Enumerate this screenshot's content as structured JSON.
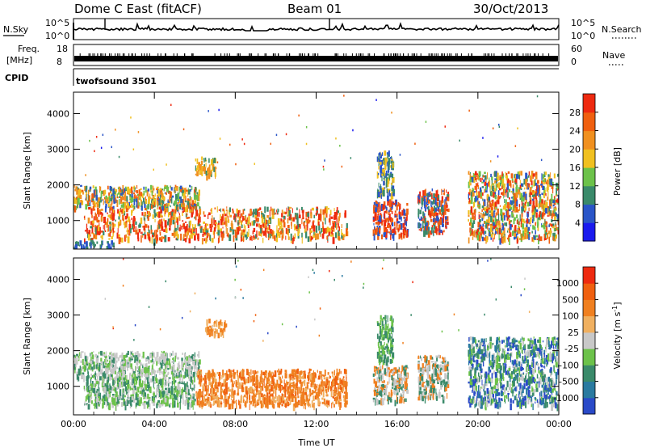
{
  "header": {
    "radar": "Dome C East (fitACF)",
    "beam": "Beam 01",
    "date": "30/Oct/2013"
  },
  "top_panels": {
    "nsky_label": "N.Sky",
    "nsky_ticks": [
      "10^5",
      "10^0"
    ],
    "nsearch_label": "N.Search",
    "nsearch_ticks": [
      "10^5",
      "10^0"
    ],
    "freq_label_1": "Freq.",
    "freq_label_2": "[MHz]",
    "freq_ticks": [
      "18",
      "8"
    ],
    "nave_label": "Nave",
    "nave_ticks": [
      "60",
      "0"
    ],
    "cpid_label": "CPID",
    "cpid_value": "twofsound 3501"
  },
  "chart_data": [
    {
      "type": "heatmap",
      "name": "power",
      "ylabel": "Slant Range [km]",
      "yticks": [
        1000,
        2000,
        3000,
        4000
      ],
      "ylim": [
        200,
        4600
      ],
      "xlim": [
        0,
        24
      ],
      "xticks": [
        "00:00",
        "04:00",
        "08:00",
        "12:00",
        "16:00",
        "20:00",
        "00:00"
      ],
      "colorbar": {
        "label": "Power [dB]",
        "ticks": [
          "4",
          "8",
          "12",
          "16",
          "20",
          "24",
          "28"
        ],
        "colors": [
          "#1a1aee",
          "#2a55c8",
          "#3a8a6a",
          "#6cc24a",
          "#f0c020",
          "#f09020",
          "#f06010",
          "#ee2a10"
        ]
      },
      "regions": [
        {
          "t": [
            0.0,
            6.2
          ],
          "r": [
            1400,
            2000
          ],
          "cls": [
            2,
            3,
            5,
            4,
            6,
            1
          ]
        },
        {
          "t": [
            0.5,
            13.5
          ],
          "r": [
            500,
            1400
          ],
          "cls": [
            7,
            6,
            5,
            7,
            4,
            2
          ]
        },
        {
          "t": [
            0.0,
            2.0
          ],
          "r": [
            250,
            450
          ],
          "cls": [
            1,
            2
          ]
        },
        {
          "t": [
            6.0,
            7.0
          ],
          "r": [
            2300,
            2800
          ],
          "cls": [
            5,
            4,
            2
          ]
        },
        {
          "t": [
            14.8,
            16.5
          ],
          "r": [
            600,
            1600
          ],
          "cls": [
            7,
            6,
            1
          ]
        },
        {
          "t": [
            15.0,
            15.8
          ],
          "r": [
            1700,
            3000
          ],
          "cls": [
            4,
            2,
            1
          ]
        },
        {
          "t": [
            17.0,
            18.5
          ],
          "r": [
            700,
            1900
          ],
          "cls": [
            6,
            7,
            1,
            2
          ]
        },
        {
          "t": [
            19.5,
            24.0
          ],
          "r": [
            500,
            2400
          ],
          "cls": [
            1,
            3,
            2,
            4,
            5,
            6,
            7
          ]
        }
      ]
    },
    {
      "type": "heatmap",
      "name": "velocity",
      "ylabel": "Slant Range [km]",
      "yticks": [
        1000,
        2000,
        3000,
        4000
      ],
      "ylim": [
        200,
        4600
      ],
      "xlim": [
        0,
        24
      ],
      "xticks": [
        "00:00",
        "04:00",
        "08:00",
        "12:00",
        "16:00",
        "20:00",
        "00:00"
      ],
      "xlabel": "Time UT",
      "colorbar": {
        "label": "Velocity [m s",
        "label_sup": "-1",
        "label_end": "]",
        "ticks": [
          "1000",
          "500",
          "100",
          "25",
          "-25",
          "-100",
          "-500",
          "-1000"
        ],
        "colors": [
          "#2a4ac8",
          "#2a7aa0",
          "#3a8a6a",
          "#6cc24a",
          "#c8c8c8",
          "#f0b060",
          "#f08020",
          "#f06010",
          "#ee2a10"
        ]
      },
      "regions": [
        {
          "t": [
            0.0,
            6.2
          ],
          "r": [
            1300,
            2000
          ],
          "cls": [
            4,
            3,
            4,
            2
          ]
        },
        {
          "t": [
            0.5,
            6.0
          ],
          "r": [
            500,
            1300
          ],
          "cls": [
            3,
            2,
            4
          ]
        },
        {
          "t": [
            6.0,
            13.5
          ],
          "r": [
            500,
            1500
          ],
          "cls": [
            6,
            6,
            7,
            5
          ]
        },
        {
          "t": [
            6.5,
            7.5
          ],
          "r": [
            2500,
            2900
          ],
          "cls": [
            6,
            5
          ]
        },
        {
          "t": [
            14.8,
            16.5
          ],
          "r": [
            600,
            1600
          ],
          "cls": [
            2,
            6,
            4
          ]
        },
        {
          "t": [
            15.0,
            15.8
          ],
          "r": [
            1700,
            3000
          ],
          "cls": [
            2,
            3
          ]
        },
        {
          "t": [
            17.0,
            18.5
          ],
          "r": [
            700,
            1900
          ],
          "cls": [
            2,
            6,
            4
          ]
        },
        {
          "t": [
            19.5,
            24.0
          ],
          "r": [
            500,
            2400
          ],
          "cls": [
            2,
            0,
            1,
            4,
            3
          ]
        }
      ]
    }
  ]
}
